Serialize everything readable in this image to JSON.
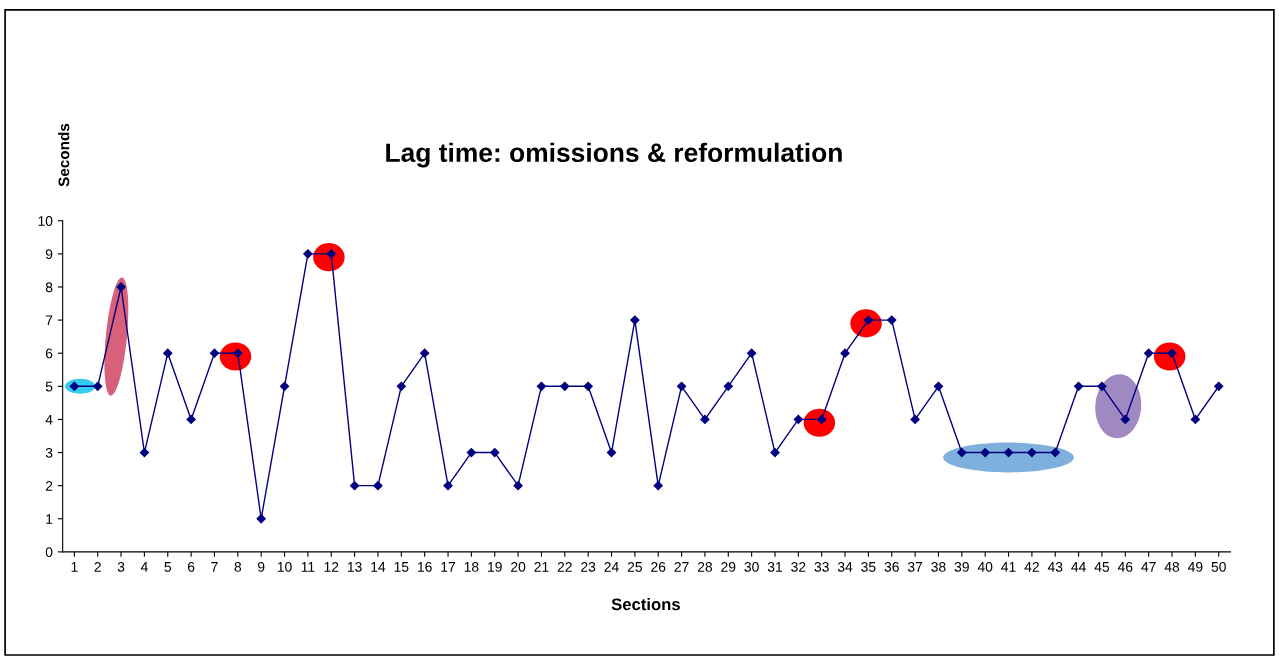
{
  "chart_data": {
    "type": "line",
    "title": "Lag time: omissions & reformulation",
    "xlabel": "Sections",
    "ylabel": "Seconds",
    "categories": [
      "1",
      "2",
      "3",
      "4",
      "5",
      "6",
      "7",
      "8",
      "9",
      "10",
      "11",
      "12",
      "13",
      "14",
      "15",
      "16",
      "17",
      "18",
      "19",
      "20",
      "21",
      "22",
      "23",
      "24",
      "25",
      "26",
      "27",
      "28",
      "29",
      "30",
      "31",
      "32",
      "33",
      "34",
      "35",
      "36",
      "37",
      "38",
      "39",
      "40",
      "41",
      "42",
      "43",
      "44",
      "45",
      "46",
      "47",
      "48",
      "49",
      "50"
    ],
    "series": [
      {
        "color": "#000080",
        "values": [
          5,
          5,
          8,
          3,
          6,
          4,
          6,
          6,
          1,
          5,
          9,
          9,
          2,
          2,
          5,
          6,
          2,
          3,
          3,
          2,
          5,
          5,
          5,
          3,
          7,
          2,
          5,
          4,
          5,
          6,
          3,
          4,
          4,
          6,
          7,
          7,
          4,
          5,
          3,
          3,
          3,
          3,
          3,
          5,
          5,
          4,
          6,
          6,
          4,
          5
        ]
      }
    ],
    "ylim": [
      0,
      10
    ],
    "yticks": [
      0,
      1,
      2,
      3,
      4,
      5,
      6,
      7,
      8,
      9,
      10
    ],
    "grid": false,
    "legend": false,
    "marker": "diamond",
    "line_style": "solid"
  }
}
